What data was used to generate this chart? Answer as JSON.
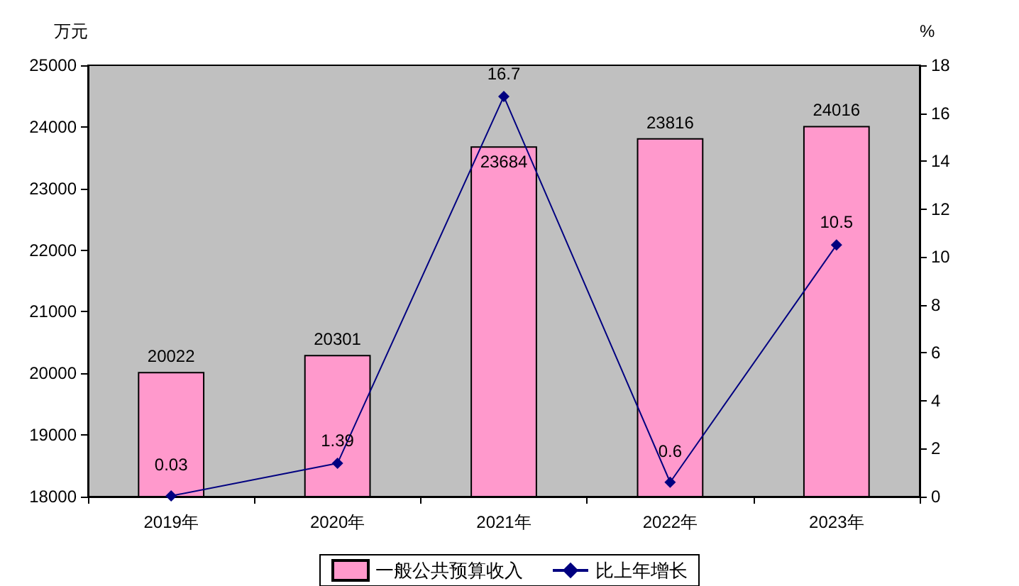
{
  "chart_data": {
    "type": "bar",
    "categories": [
      "2019年",
      "2020年",
      "2021年",
      "2022年",
      "2023年"
    ],
    "series": [
      {
        "name": "一般公共预算收入",
        "color": "#ff99cc",
        "values": [
          20022,
          20301,
          23684,
          23816,
          24016
        ]
      },
      {
        "name": "比上年增长",
        "type": "line",
        "axis": "y2",
        "color": "#000080",
        "values": [
          0.03,
          1.39,
          16.7,
          0.6,
          10.5
        ]
      }
    ],
    "ylabel": "万元",
    "y2label": "%",
    "ylim": [
      18000,
      25000
    ],
    "yticks": [
      18000,
      19000,
      20000,
      21000,
      22000,
      23000,
      24000,
      25000
    ],
    "y2lim": [
      0,
      18
    ],
    "y2ticks": [
      0,
      2,
      4,
      6,
      8,
      10,
      12,
      14,
      16,
      18
    ],
    "data_labels": true,
    "legend": "bottom",
    "marker": "diamond",
    "grid": false
  }
}
